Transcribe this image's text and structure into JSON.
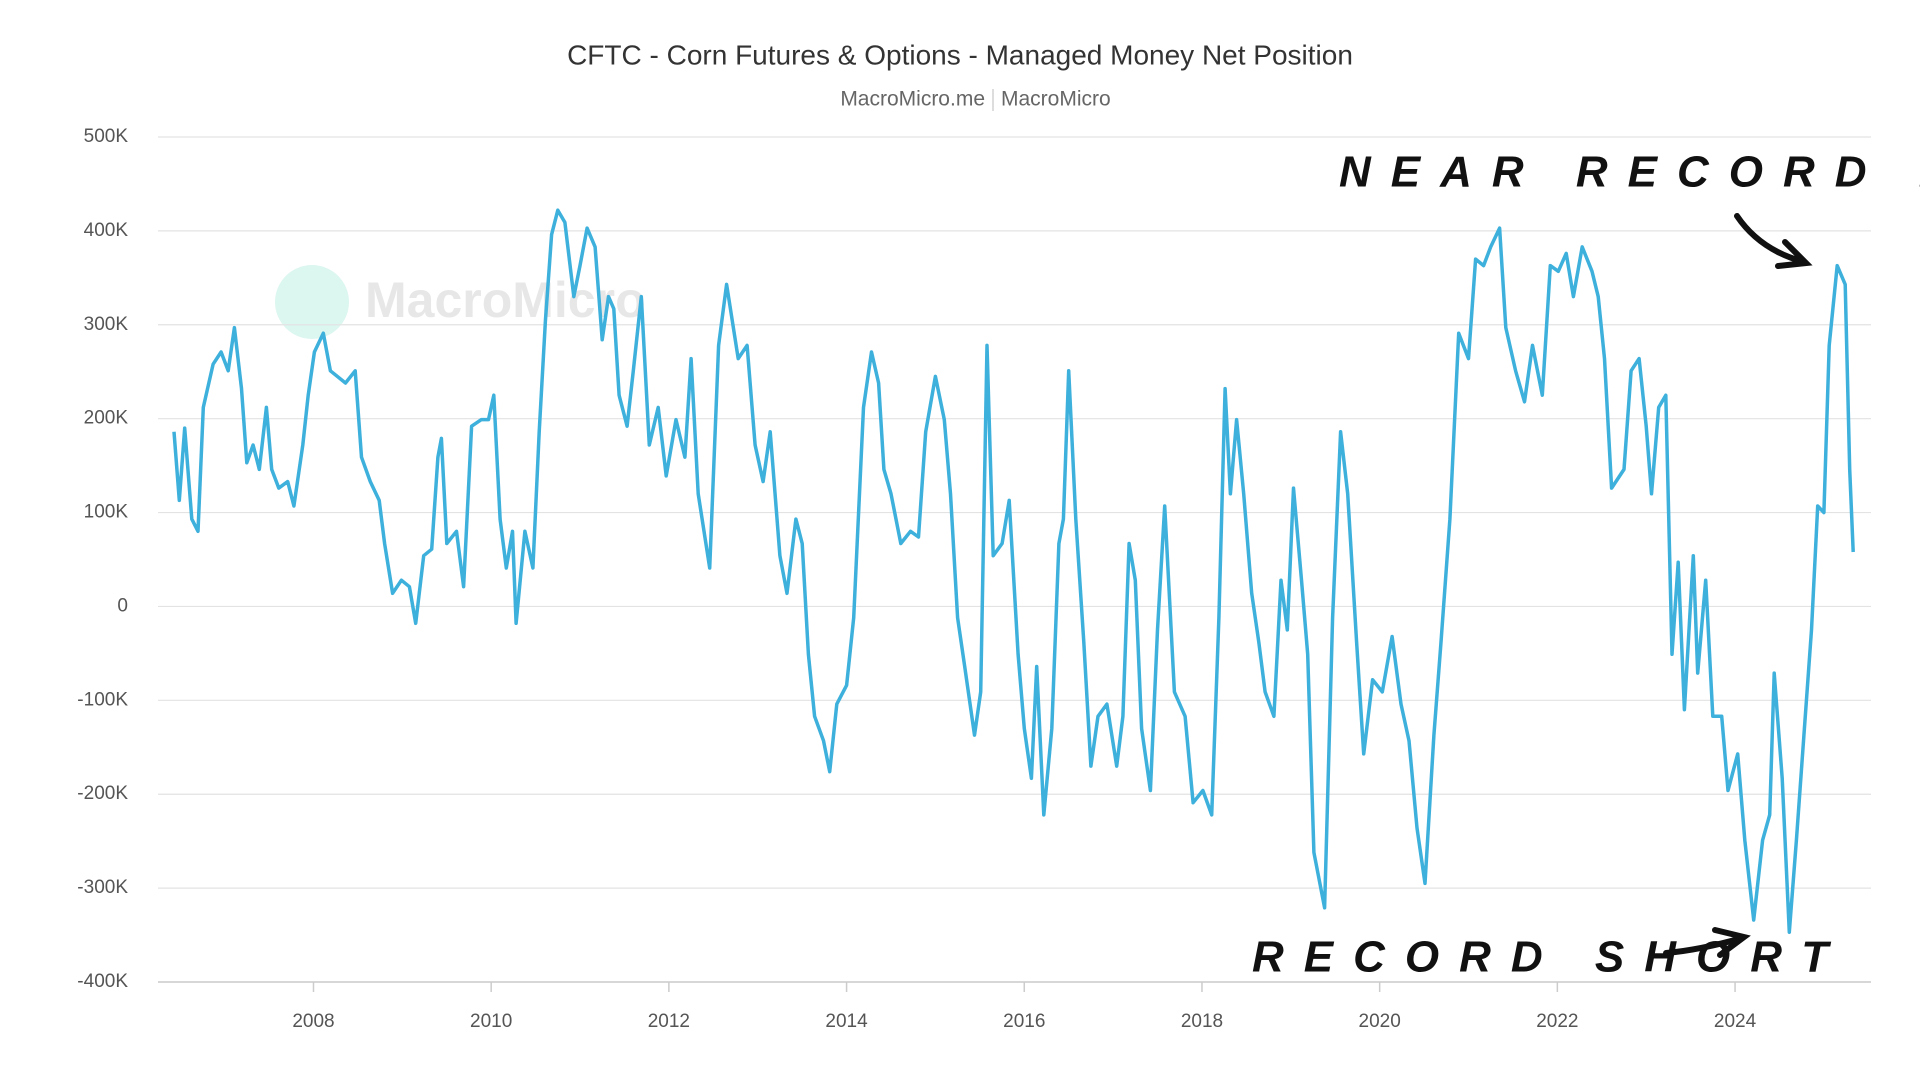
{
  "chart_data": {
    "type": "line",
    "title": "CFTC - Corn Futures & Options - Managed Money Net Position",
    "source": "MacroMicro.me",
    "source_name": "MacroMicro",
    "watermark": "MacroMicro",
    "annotations": [
      "NEAR RECORD LONG",
      "RECORD SHORT"
    ],
    "grid": true,
    "xlim": [
      2006.25,
      2025.53
    ],
    "xticks": [
      2008,
      2010,
      2012,
      2014,
      2016,
      2018,
      2020,
      2022,
      2024
    ],
    "ylim": [
      -400000,
      500000
    ],
    "yticks": [
      {
        "value": -400000,
        "label": "-400K"
      },
      {
        "value": -300000,
        "label": "-300K"
      },
      {
        "value": -200000,
        "label": "-200K"
      },
      {
        "value": -100000,
        "label": "-100K"
      },
      0,
      {
        "value": 100000,
        "label": "100K"
      },
      {
        "value": 200000,
        "label": "200K"
      },
      {
        "value": 300000,
        "label": "300K"
      },
      {
        "value": 400000,
        "label": "400K"
      },
      {
        "value": 500000,
        "label": "500K"
      }
    ],
    "x": [
      2006.43,
      2006.49,
      2006.55,
      2006.63,
      2006.7,
      2006.76,
      2006.87,
      2006.96,
      2007.04,
      2007.11,
      2007.19,
      2007.25,
      2007.32,
      2007.39,
      2007.47,
      2007.53,
      2007.61,
      2007.71,
      2007.78,
      2007.88,
      2007.94,
      2008.01,
      2008.11,
      2008.19,
      2008.36,
      2008.47,
      2008.54,
      2008.64,
      2008.74,
      2008.8,
      2008.89,
      2008.99,
      2009.08,
      2009.15,
      2009.24,
      2009.33,
      2009.4,
      2009.44,
      2009.5,
      2009.61,
      2009.69,
      2009.78,
      2009.89,
      2009.97,
      2010.03,
      2010.1,
      2010.17,
      2010.24,
      2010.28,
      2010.38,
      2010.47,
      2010.54,
      2010.61,
      2010.68,
      2010.75,
      2010.83,
      2010.93,
      2011.0,
      2011.08,
      2011.17,
      2011.25,
      2011.32,
      2011.38,
      2011.44,
      2011.53,
      2011.6,
      2011.69,
      2011.78,
      2011.88,
      2011.97,
      2012.08,
      2012.18,
      2012.25,
      2012.33,
      2012.46,
      2012.56,
      2012.65,
      2012.78,
      2012.88,
      2012.97,
      2013.06,
      2013.14,
      2013.25,
      2013.33,
      2013.43,
      2013.5,
      2013.57,
      2013.64,
      2013.74,
      2013.81,
      2013.89,
      2014.0,
      2014.08,
      2014.19,
      2014.28,
      2014.36,
      2014.42,
      2014.5,
      2014.61,
      2014.72,
      2014.81,
      2014.89,
      2015.0,
      2015.1,
      2015.17,
      2015.25,
      2015.33,
      2015.44,
      2015.51,
      2015.58,
      2015.65,
      2015.75,
      2015.83,
      2015.93,
      2016.0,
      2016.08,
      2016.14,
      2016.22,
      2016.31,
      2016.39,
      2016.44,
      2016.5,
      2016.58,
      2016.67,
      2016.75,
      2016.83,
      2016.93,
      2017.04,
      2017.11,
      2017.18,
      2017.25,
      2017.32,
      2017.42,
      2017.5,
      2017.58,
      2017.69,
      2017.81,
      2017.9,
      2018.01,
      2018.11,
      2018.19,
      2018.26,
      2018.32,
      2018.39,
      2018.47,
      2018.56,
      2018.64,
      2018.71,
      2018.81,
      2018.89,
      2018.96,
      2019.03,
      2019.12,
      2019.19,
      2019.26,
      2019.38,
      2019.47,
      2019.56,
      2019.64,
      2019.74,
      2019.82,
      2019.92,
      2020.03,
      2020.14,
      2020.24,
      2020.33,
      2020.42,
      2020.51,
      2020.61,
      2020.69,
      2020.79,
      2020.89,
      2021.0,
      2021.08,
      2021.17,
      2021.25,
      2021.35,
      2021.42,
      2021.53,
      2021.63,
      2021.72,
      2021.83,
      2021.92,
      2022.01,
      2022.1,
      2022.18,
      2022.28,
      2022.39,
      2022.46,
      2022.53,
      2022.61,
      2022.75,
      2022.83,
      2022.92,
      2023.0,
      2023.06,
      2023.14,
      2023.22,
      2023.29,
      2023.36,
      2023.43,
      2023.53,
      2023.58,
      2023.67,
      2023.75,
      2023.85,
      2023.92,
      2024.03,
      2024.11,
      2024.21,
      2024.31,
      2024.39,
      2024.44,
      2024.53,
      2024.61,
      2024.69,
      2024.78,
      2024.86,
      2024.93,
      2025.0,
      2025.06,
      2025.15,
      2025.24,
      2025.29,
      2025.33
    ],
    "series": [
      {
        "name": "Managed Money Net Position",
        "color": "#3eb0dc",
        "values": [
          186000,
          113000,
          190000,
          93000,
          80000,
          212000,
          258000,
          271000,
          251000,
          297000,
          232000,
          153000,
          172000,
          146000,
          212000,
          146000,
          126000,
          133000,
          107000,
          172000,
          225000,
          271000,
          291000,
          251000,
          238000,
          251000,
          159000,
          133000,
          113000,
          67000,
          14000,
          28000,
          21000,
          -18000,
          54000,
          61000,
          159000,
          179000,
          67000,
          80000,
          21000,
          192000,
          199000,
          199000,
          225000,
          93000,
          41000,
          80000,
          -18000,
          80000,
          41000,
          186000,
          304000,
          396000,
          422000,
          409000,
          330000,
          363000,
          403000,
          383000,
          284000,
          330000,
          317000,
          225000,
          192000,
          251000,
          330000,
          172000,
          212000,
          139000,
          199000,
          159000,
          264000,
          120000,
          41000,
          278000,
          343000,
          264000,
          278000,
          172000,
          133000,
          186000,
          54000,
          14000,
          93000,
          67000,
          -51000,
          -117000,
          -143000,
          -176000,
          -104000,
          -84000,
          -12000,
          212000,
          271000,
          238000,
          146000,
          120000,
          67000,
          80000,
          74000,
          186000,
          245000,
          199000,
          120000,
          -12000,
          -64000,
          -137000,
          -91000,
          278000,
          54000,
          67000,
          113000,
          -51000,
          -130000,
          -183000,
          -64000,
          -222000,
          -130000,
          67000,
          93000,
          251000,
          93000,
          -38000,
          -170000,
          -117000,
          -104000,
          -170000,
          -117000,
          67000,
          28000,
          -130000,
          -196000,
          -25000,
          107000,
          -91000,
          -117000,
          -209000,
          -196000,
          -222000,
          -12000,
          232000,
          120000,
          199000,
          120000,
          14000,
          -38000,
          -91000,
          -117000,
          28000,
          -25000,
          126000,
          28000,
          -51000,
          -262000,
          -321000,
          -12000,
          186000,
          120000,
          -38000,
          -157000,
          -78000,
          -91000,
          -32000,
          -104000,
          -143000,
          -236000,
          -295000,
          -137000,
          -38000,
          93000,
          291000,
          264000,
          370000,
          363000,
          383000,
          403000,
          297000,
          251000,
          218000,
          278000,
          225000,
          363000,
          357000,
          376000,
          330000,
          383000,
          357000,
          330000,
          264000,
          126000,
          146000,
          251000,
          264000,
          192000,
          120000,
          212000,
          225000,
          -51000,
          47000,
          -110000,
          54000,
          -71000,
          28000,
          -117000,
          -117000,
          -196000,
          -157000,
          -249000,
          -334000,
          -249000,
          -222000,
          -71000,
          -183000,
          -347000,
          -249000,
          -130000,
          -25000,
          107000,
          100000,
          278000,
          363000,
          343000,
          146000,
          58000
        ]
      }
    ]
  }
}
